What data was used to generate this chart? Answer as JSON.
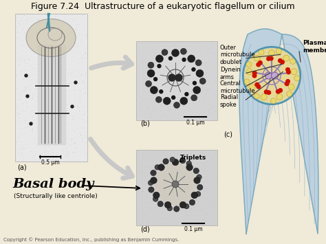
{
  "title": "Figure 7.24  Ultrastructure of a eukaryotic flagellum or cilium",
  "title_fontsize": 9,
  "title_color": "#000000",
  "background_color": "#f0ead8",
  "fig_bg_color": "#f0ead8",
  "copyright_text": "Copyright © Pearson Education, Inc., publishing as Benjamin Cummings.",
  "copyright_fontsize": 5,
  "labels": {
    "outer_microtubule": "Outer\nmicrotubule\ndoublet",
    "dynein_arms": "Dynein\narms",
    "central_microtubule": "Central\nmicrotubule",
    "radial_spoke": "Radial\nspoke",
    "plasma_membrane": "Plasma\nmembrane",
    "triplets": "Triplets",
    "basal_body": "Basal body",
    "basal_body_sub": "(Structurally like centriole)",
    "label_a": "(a)",
    "label_b": "(b)",
    "label_c": "(c)",
    "label_d": "(d)",
    "scale_05": "0.5 μm",
    "scale_01_b": "0.1 μm",
    "scale_01_d": "0.1 μm"
  },
  "colors": {
    "em_bg": "#c8c8c8",
    "em_dark": "#303030",
    "em_mid": "#606060",
    "em_light": "#a0a0a0",
    "em_white": "#e0e0e0",
    "big_arrow": "#c8c8c8",
    "cilium_outer": "#b8cfe0",
    "cilium_line": "#8aaec8",
    "cilium_dark_line": "#6090b0",
    "plasma_mem_color": "#70b0c8",
    "doublet_yellow": "#e8d870",
    "doublet_outline": "#c0aa40",
    "red_dot": "#cc1100",
    "spoke_purple": "#9080b8",
    "center_purple": "#c0a8d0",
    "inner_bg": "#e8d898",
    "annotation_line": "#333333",
    "scale_bar": "#000000"
  },
  "layout": {
    "figsize": [
      4.74,
      3.55
    ],
    "dpi": 100
  }
}
